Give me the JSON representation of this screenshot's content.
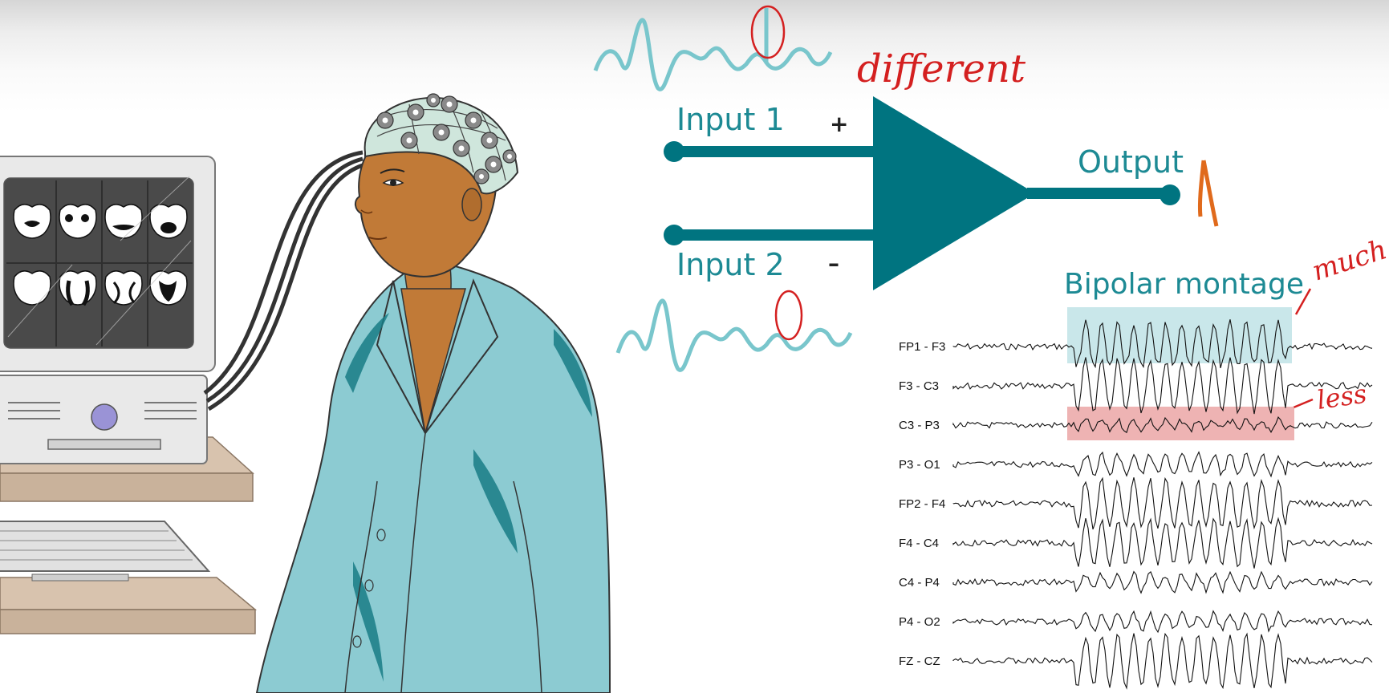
{
  "amplifier": {
    "input1_label": "Input 1",
    "input2_label": "Input 2",
    "plus_sign": "+",
    "minus_sign": "–",
    "output_label": "Output",
    "color": "#007480"
  },
  "annotations": {
    "different": "different",
    "much": "much",
    "less": "less",
    "color": "#d42020"
  },
  "montage": {
    "title": "Bipolar montage",
    "channels": [
      {
        "label": "FP1 - F3",
        "amp": 30,
        "spiky": true
      },
      {
        "label": "F3  -  C3",
        "amp": 32,
        "spiky": false
      },
      {
        "label": "C3  -  P3",
        "amp": 6,
        "spiky": false
      },
      {
        "label": "P3  -  O1",
        "amp": 12,
        "spiky": false
      },
      {
        "label": "FP2 - F4",
        "amp": 30,
        "spiky": false
      },
      {
        "label": "F4  -  C4",
        "amp": 28,
        "spiky": false
      },
      {
        "label": "C4  -  P4",
        "amp": 10,
        "spiky": false
      },
      {
        "label": "P4  -  O2",
        "amp": 10,
        "spiky": false
      },
      {
        "label": "FZ  -  CZ",
        "amp": 32,
        "spiky": false
      }
    ],
    "highlight_much_color": "#bfe3e6",
    "highlight_less_color": "#e89a9a"
  },
  "monitor": {
    "screen_color": "#4a4a4a"
  }
}
